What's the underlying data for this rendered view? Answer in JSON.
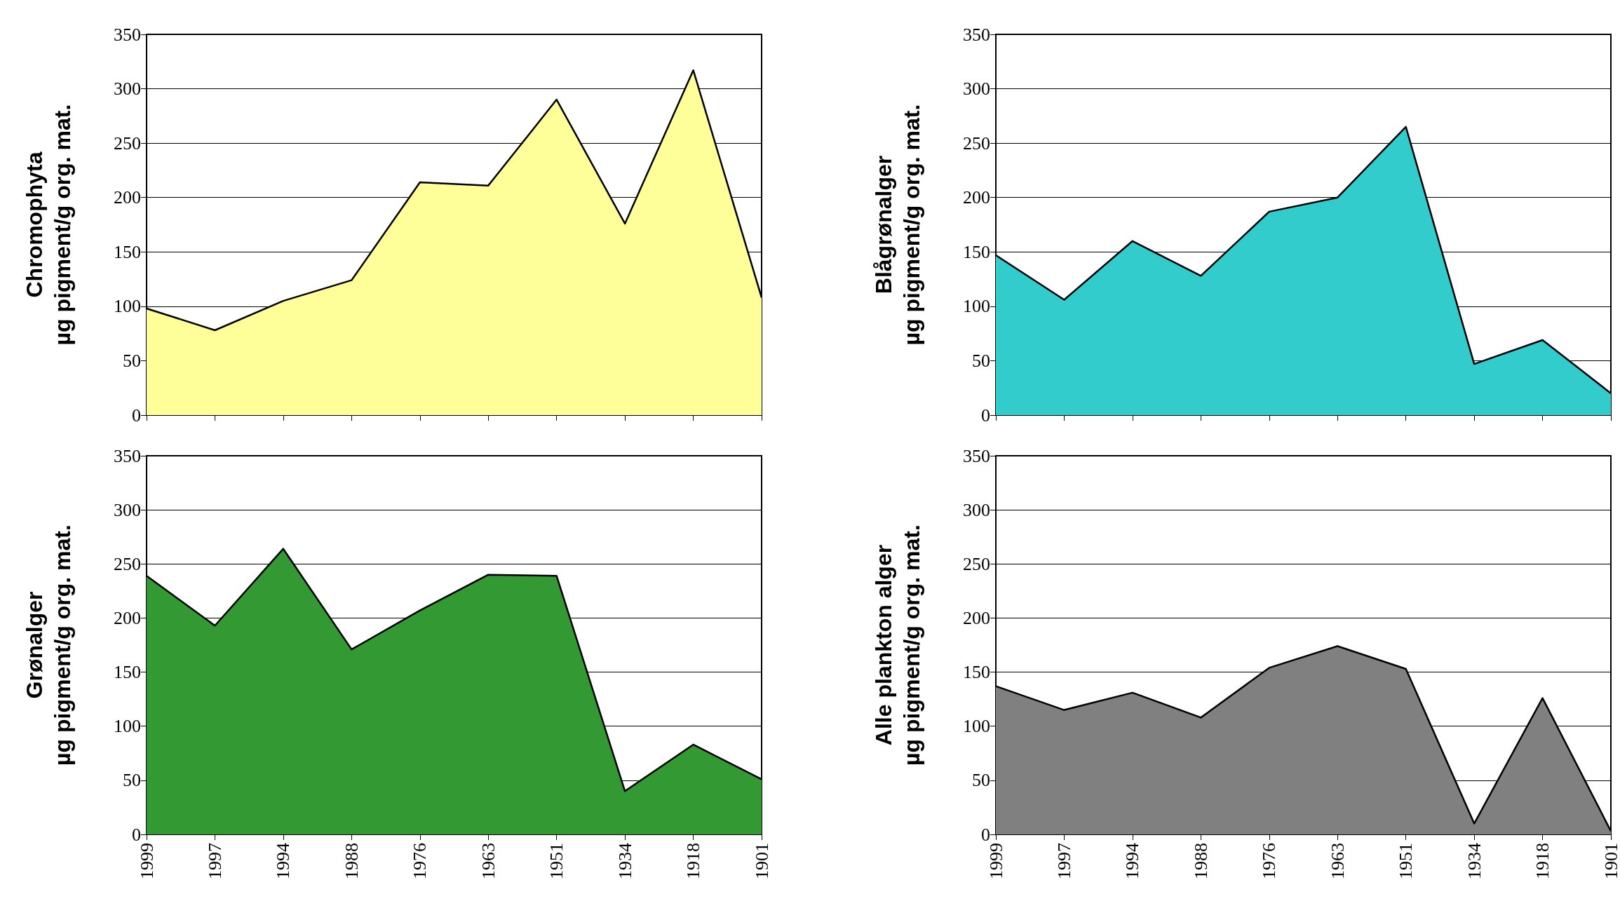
{
  "chart_data": [
    {
      "type": "area",
      "ylabel": "Chromophyta\nµg pigment/g org. mat.",
      "categories": [
        "1999",
        "1997",
        "1994",
        "1988",
        "1976",
        "1963",
        "1951",
        "1934",
        "1918",
        "1901"
      ],
      "series": [
        {
          "color": "#ffff99",
          "values": [
            98,
            78,
            105,
            124,
            214,
            211,
            290,
            176,
            317,
            108
          ]
        }
      ],
      "ylim": [
        0,
        350
      ],
      "yticks": [
        0,
        50,
        100,
        150,
        200,
        250,
        300,
        350
      ],
      "grid": "y",
      "tick_labels": "y",
      "marker": "none",
      "line_style": "solid"
    },
    {
      "type": "area",
      "ylabel": "Blågrønalger\nµg pigment/g org. mat.",
      "categories": [
        "1999",
        "1997",
        "1994",
        "1988",
        "1976",
        "1963",
        "1951",
        "1934",
        "1918",
        "1901"
      ],
      "series": [
        {
          "color": "#33cccc",
          "values": [
            147,
            106,
            160,
            128,
            187,
            200,
            265,
            47,
            69,
            20
          ]
        }
      ],
      "ylim": [
        0,
        350
      ],
      "yticks": [
        0,
        50,
        100,
        150,
        200,
        250,
        300,
        350
      ],
      "grid": "y",
      "tick_labels": "y",
      "marker": "none",
      "line_style": "solid"
    },
    {
      "type": "area",
      "ylabel": "Grønalger\nµg pigment/g org. mat.",
      "categories": [
        "1999",
        "1997",
        "1994",
        "1988",
        "1976",
        "1963",
        "1951",
        "1934",
        "1918",
        "1901"
      ],
      "series": [
        {
          "color": "#339933",
          "values": [
            239,
            193,
            264,
            171,
            207,
            240,
            239,
            40,
            83,
            51
          ]
        }
      ],
      "ylim": [
        0,
        350
      ],
      "yticks": [
        0,
        50,
        100,
        150,
        200,
        250,
        300,
        350
      ],
      "grid": "y",
      "marker": "none",
      "line_style": "solid"
    },
    {
      "type": "area",
      "ylabel": "Alle plankton alger\nµg pigment/g org. mat.",
      "categories": [
        "1999",
        "1997",
        "1994",
        "1988",
        "1976",
        "1963",
        "1951",
        "1934",
        "1918",
        "1901"
      ],
      "series": [
        {
          "color": "#808080",
          "values": [
            137,
            115,
            131,
            108,
            154,
            174,
            153,
            10,
            126,
            3
          ]
        }
      ],
      "ylim": [
        0,
        350
      ],
      "yticks": [
        0,
        50,
        100,
        150,
        200,
        250,
        300,
        350
      ],
      "grid": "y",
      "marker": "none",
      "line_style": "solid"
    }
  ]
}
